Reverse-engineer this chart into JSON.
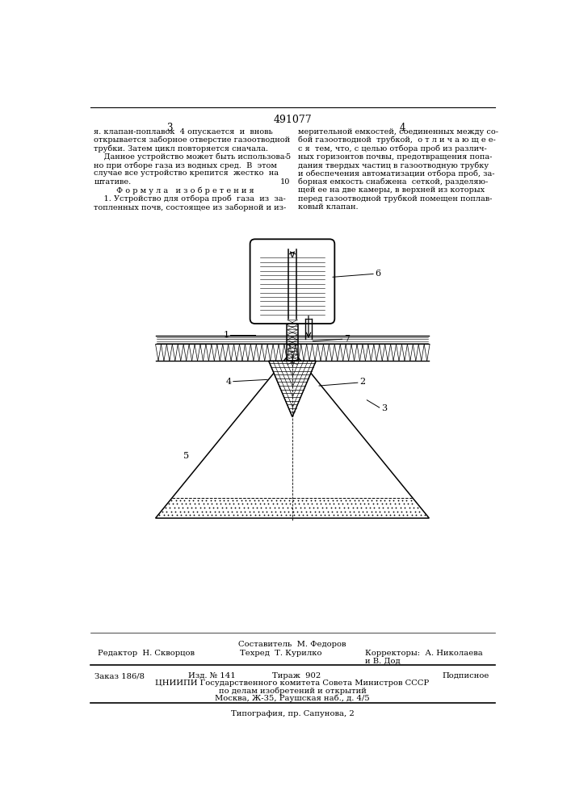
{
  "patent_number": "491077",
  "col_left": "3",
  "col_right": "4",
  "text_left_top": "я. клапан-поплавок  4 опускается  и  вновь\nоткрывается заборное отверстие газоотводной\nтрубки. Затем цикл повторяется сначала.\n    Данное устройство может быть использова-\nно при отборе газа из водных сред.  В  этом\nслучае все устройство крепится  жестко  на\nштативе.\n         Ф о р м у л а   и з о б р е т е н и я\n    1. Устройство для отбора проб  газа  из  за-\nтопленных почв, состоящее из заборной и из-",
  "text_right_top": "мерительной емкостей, соединенных между со-\nбой газоотводной  трубкой,  о т л и ч а ю щ е е-\nс я  тем, что, с целью отбора проб из различ-\nных горизонтов почвы, предотвращения попа-\nдания твердых частиц в газоотводную трубку\nи обеспечения автоматизации отбора проб, за-\nборная емкость снабжена  сеткой, разделяю-\nщей ее на две камеры, в верхней из которых\nперед газоотводной трубкой помещен поплав-\nковый клапан.",
  "footer_composer": "Составитель  М. Федоров",
  "footer_line1_left": "Редактор  Н. Скворцов",
  "footer_line1_center": "Техред  Т. Курилко",
  "footer_line1_right": "Корректоры:  А. Николаева",
  "footer_line1_right2": "и В. Дод",
  "footer_line2_col1": "Заказ 186/8",
  "footer_line2_col2": "Изд. № 141",
  "footer_line2_col3": "Тираж  902",
  "footer_line2_col4": "Подписное",
  "footer_line3": "ЦНИИПИ Государственного комитета Совета Министров СССР",
  "footer_line4": "по делам изобретений и открытий",
  "footer_line5": "Москва, Ж-35, Раушская наб., д. 4/5",
  "footer_line6": "Типография, пр. Сапунова, 2",
  "bg_color": "#ffffff",
  "text_color": "#000000"
}
